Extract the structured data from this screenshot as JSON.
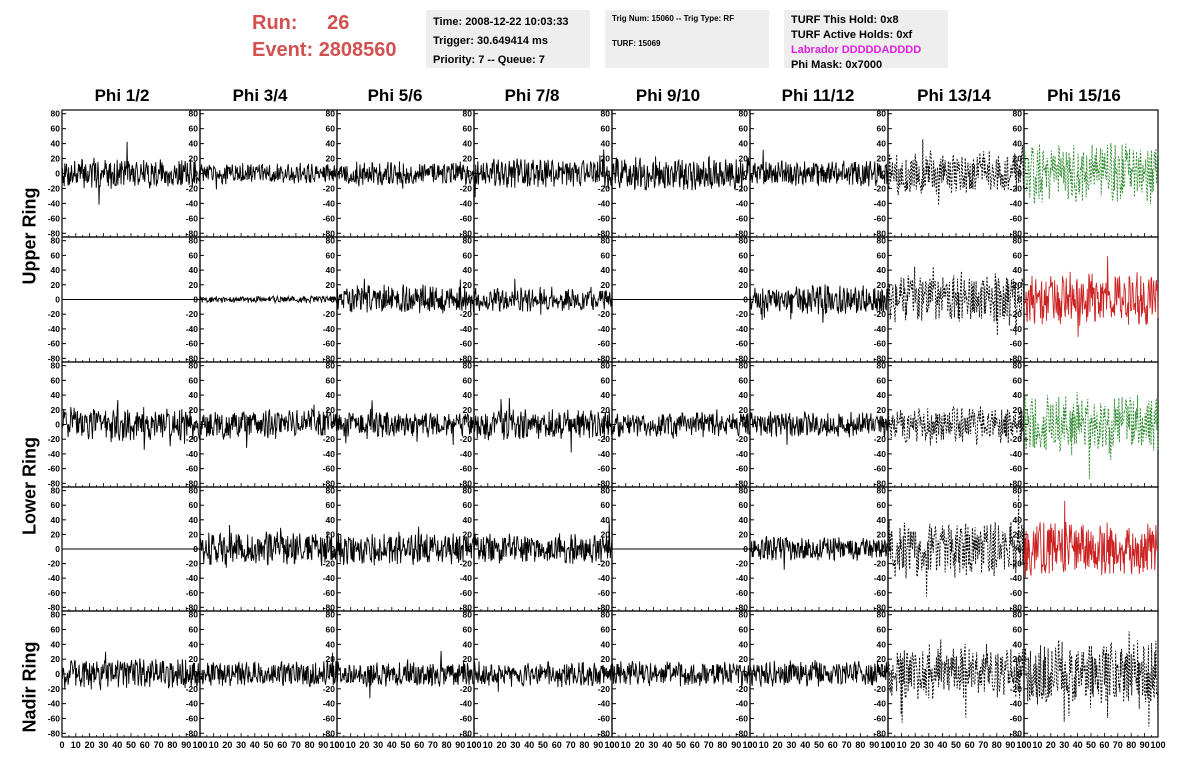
{
  "header": {
    "run_label": "Run:",
    "run_value": "26",
    "event_label": "Event:",
    "event_value": "2808560",
    "time": "Time: 2008-12-22 10:03:33",
    "trigger": "Trigger: 30.649414 ms",
    "priority_queue": "Priority: 7 -- Queue: 7",
    "trig_num_type": "Trig Num: 15060 -- Trig Type: RF",
    "turf": "TURF: 15069",
    "turf_this_hold": "TURF This Hold: 0x8",
    "turf_active_holds": "TURF Active Holds: 0xf",
    "labrador": "Labrador DDDDDADDDD",
    "phi_mask": "Phi Mask: 0x7000"
  },
  "columns": [
    "Phi 1/2",
    "Phi 3/4",
    "Phi 5/6",
    "Phi 7/8",
    "Phi 9/10",
    "Phi 11/12",
    "Phi 13/14",
    "Phi 15/16"
  ],
  "rings": [
    "Upper Ring",
    "Lower Ring",
    "Nadir Ring"
  ],
  "y_tick_labels": [
    "80",
    "60",
    "40",
    "20",
    "0",
    "-20",
    "-40",
    "-60",
    "-80"
  ],
  "x_tick_labels": [
    "0",
    "10",
    "20",
    "30",
    "40",
    "50",
    "60",
    "70",
    "80",
    "90",
    "100"
  ],
  "colors": {
    "run_text": "#d35050",
    "info_box_bg": "#eeeeee",
    "labrador_text": "#e020e0",
    "trace_normal": "#000000",
    "trace_green": "#2e8b2e",
    "trace_red": "#cc2222"
  },
  "chart_data": {
    "type": "line",
    "x_range": [
      0,
      100
    ],
    "y_range": [
      -85,
      85
    ],
    "rows": 5,
    "cols": 8,
    "panels": [
      {
        "row": 0,
        "col": 0,
        "style": "solid",
        "color": "black",
        "amplitude": 18
      },
      {
        "row": 0,
        "col": 1,
        "style": "solid",
        "color": "black",
        "amplitude": 12
      },
      {
        "row": 0,
        "col": 2,
        "style": "solid",
        "color": "black",
        "amplitude": 15
      },
      {
        "row": 0,
        "col": 3,
        "style": "solid",
        "color": "black",
        "amplitude": 18
      },
      {
        "row": 0,
        "col": 4,
        "style": "solid",
        "color": "black",
        "amplitude": 20
      },
      {
        "row": 0,
        "col": 5,
        "style": "solid",
        "color": "black",
        "amplitude": 15
      },
      {
        "row": 0,
        "col": 6,
        "style": "dashed",
        "color": "black",
        "amplitude": 25
      },
      {
        "row": 0,
        "col": 7,
        "style": "dashed",
        "color": "green",
        "amplitude": 35
      },
      {
        "row": 1,
        "col": 0,
        "style": "solid",
        "color": "black",
        "amplitude": 0
      },
      {
        "row": 1,
        "col": 1,
        "style": "solid",
        "color": "black",
        "amplitude": 4
      },
      {
        "row": 1,
        "col": 2,
        "style": "solid",
        "color": "black",
        "amplitude": 18
      },
      {
        "row": 1,
        "col": 3,
        "style": "solid",
        "color": "black",
        "amplitude": 15
      },
      {
        "row": 1,
        "col": 4,
        "style": "solid",
        "color": "black",
        "amplitude": 0
      },
      {
        "row": 1,
        "col": 5,
        "style": "solid",
        "color": "black",
        "amplitude": 18
      },
      {
        "row": 1,
        "col": 6,
        "style": "dashed",
        "color": "black",
        "amplitude": 30
      },
      {
        "row": 1,
        "col": 7,
        "style": "solid",
        "color": "red",
        "amplitude": 32
      },
      {
        "row": 2,
        "col": 0,
        "style": "solid",
        "color": "black",
        "amplitude": 20
      },
      {
        "row": 2,
        "col": 1,
        "style": "solid",
        "color": "black",
        "amplitude": 18
      },
      {
        "row": 2,
        "col": 2,
        "style": "solid",
        "color": "black",
        "amplitude": 15
      },
      {
        "row": 2,
        "col": 3,
        "style": "solid",
        "color": "black",
        "amplitude": 18
      },
      {
        "row": 2,
        "col": 4,
        "style": "solid",
        "color": "black",
        "amplitude": 15
      },
      {
        "row": 2,
        "col": 5,
        "style": "solid",
        "color": "black",
        "amplitude": 15
      },
      {
        "row": 2,
        "col": 6,
        "style": "dashed",
        "color": "black",
        "amplitude": 22
      },
      {
        "row": 2,
        "col": 7,
        "style": "dashed",
        "color": "green",
        "amplitude": 35
      },
      {
        "row": 3,
        "col": 0,
        "style": "solid",
        "color": "black",
        "amplitude": 0
      },
      {
        "row": 3,
        "col": 1,
        "style": "solid",
        "color": "black",
        "amplitude": 20
      },
      {
        "row": 3,
        "col": 2,
        "style": "solid",
        "color": "black",
        "amplitude": 20
      },
      {
        "row": 3,
        "col": 3,
        "style": "solid",
        "color": "black",
        "amplitude": 18
      },
      {
        "row": 3,
        "col": 4,
        "style": "solid",
        "color": "black",
        "amplitude": 0
      },
      {
        "row": 3,
        "col": 5,
        "style": "solid",
        "color": "black",
        "amplitude": 15
      },
      {
        "row": 3,
        "col": 6,
        "style": "dashed",
        "color": "black",
        "amplitude": 35
      },
      {
        "row": 3,
        "col": 7,
        "style": "solid",
        "color": "red",
        "amplitude": 32
      },
      {
        "row": 4,
        "col": 0,
        "style": "solid",
        "color": "black",
        "amplitude": 18
      },
      {
        "row": 4,
        "col": 1,
        "style": "solid",
        "color": "black",
        "amplitude": 15
      },
      {
        "row": 4,
        "col": 2,
        "style": "solid",
        "color": "black",
        "amplitude": 15
      },
      {
        "row": 4,
        "col": 3,
        "style": "solid",
        "color": "black",
        "amplitude": 15
      },
      {
        "row": 4,
        "col": 4,
        "style": "solid",
        "color": "black",
        "amplitude": 15
      },
      {
        "row": 4,
        "col": 5,
        "style": "solid",
        "color": "black",
        "amplitude": 15
      },
      {
        "row": 4,
        "col": 6,
        "style": "dashed",
        "color": "black",
        "amplitude": 30
      },
      {
        "row": 4,
        "col": 7,
        "style": "dashed",
        "color": "black",
        "amplitude": 40
      }
    ]
  }
}
